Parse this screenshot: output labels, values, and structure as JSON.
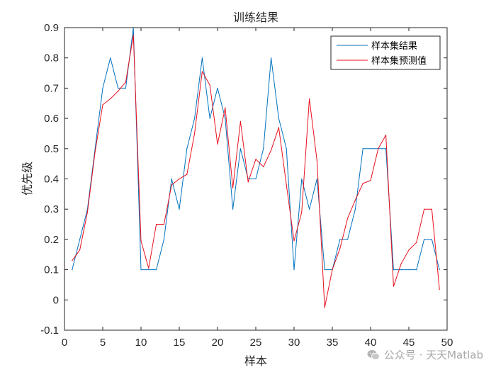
{
  "chart_data": {
    "type": "line",
    "title": "训练结果",
    "xlabel": "样本",
    "ylabel": "优先级",
    "xlim": [
      0,
      50
    ],
    "ylim": [
      -0.1,
      0.9
    ],
    "xticks": [
      0,
      5,
      10,
      15,
      20,
      25,
      30,
      35,
      40,
      45,
      50
    ],
    "yticks": [
      -0.1,
      0,
      0.1,
      0.2,
      0.3,
      0.4,
      0.5,
      0.6,
      0.7,
      0.8,
      0.9
    ],
    "grid": false,
    "legend_position": "top-right",
    "x": [
      1,
      2,
      3,
      4,
      5,
      6,
      7,
      8,
      9,
      10,
      11,
      12,
      13,
      14,
      15,
      16,
      17,
      18,
      19,
      20,
      21,
      22,
      23,
      24,
      25,
      26,
      27,
      28,
      29,
      30,
      31,
      32,
      33,
      34,
      35,
      36,
      37,
      38,
      39,
      40,
      41,
      42,
      43,
      44,
      45,
      46,
      47,
      48,
      49
    ],
    "series": [
      {
        "name": "样本集结果",
        "color": "#0072BD",
        "values": [
          0.1,
          0.2,
          0.3,
          0.5,
          0.7,
          0.8,
          0.7,
          0.7,
          0.9,
          0.1,
          0.1,
          0.1,
          0.2,
          0.4,
          0.3,
          0.5,
          0.6,
          0.8,
          0.6,
          0.7,
          0.6,
          0.3,
          0.5,
          0.4,
          0.4,
          0.5,
          0.8,
          0.6,
          0.5,
          0.1,
          0.4,
          0.3,
          0.4,
          0.1,
          0.1,
          0.2,
          0.2,
          0.3,
          0.5,
          0.5,
          0.5,
          0.5,
          0.1,
          0.1,
          0.1,
          0.1,
          0.2,
          0.2,
          0.1
        ]
      },
      {
        "name": "样本集预测值",
        "color": "#E8101E",
        "values": [
          0.13,
          0.165,
          0.29,
          0.49,
          0.645,
          0.665,
          0.69,
          0.72,
          0.875,
          0.195,
          0.105,
          0.25,
          0.25,
          0.38,
          0.4,
          0.415,
          0.55,
          0.755,
          0.71,
          0.515,
          0.635,
          0.37,
          0.59,
          0.39,
          0.465,
          0.44,
          0.495,
          0.57,
          0.38,
          0.195,
          0.29,
          0.665,
          0.46,
          -0.025,
          0.1,
          0.17,
          0.27,
          0.33,
          0.385,
          0.395,
          0.5,
          0.545,
          0.045,
          0.12,
          0.165,
          0.19,
          0.3,
          0.3,
          0.035
        ]
      }
    ]
  },
  "watermark": {
    "text": "公众号 · 天天Matlab",
    "icon": "wechat-icon"
  }
}
